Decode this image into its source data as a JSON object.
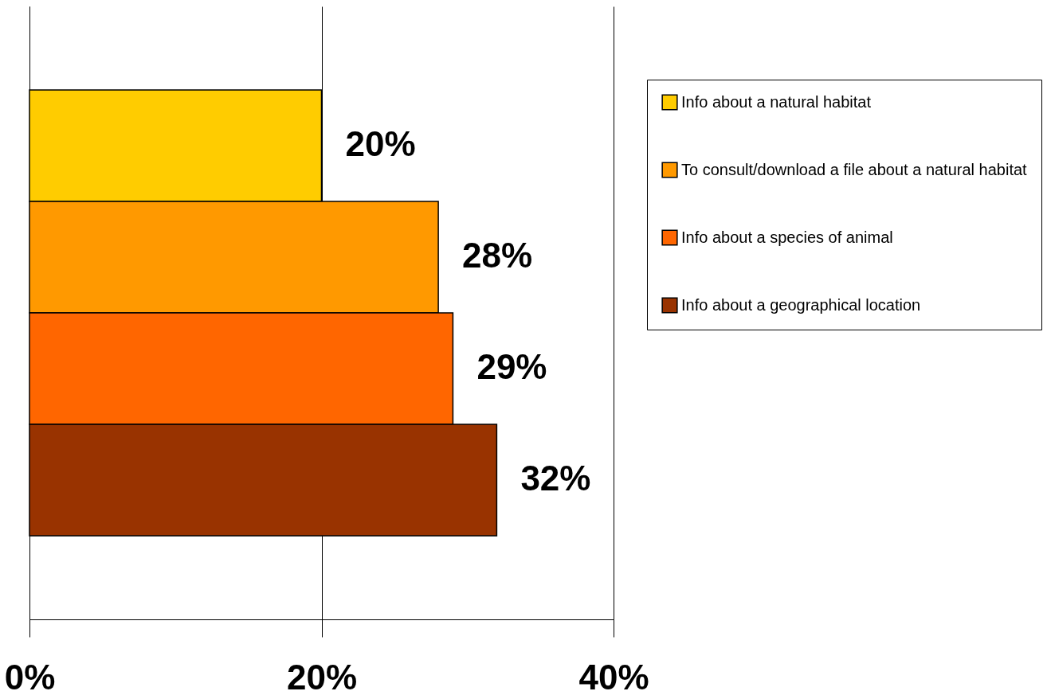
{
  "chart_data": {
    "type": "bar",
    "orientation": "horizontal",
    "categories": [
      null,
      null,
      null,
      null
    ],
    "series": [
      {
        "name": "Info about a natural habitat",
        "color": "#ffcc00",
        "values": [
          20,
          null,
          null,
          null
        ],
        "value_labels": [
          "20%",
          null,
          null,
          null
        ]
      },
      {
        "name": "To consult/download a file about a natural habitat",
        "color": "#ff9900",
        "values": [
          null,
          28,
          null,
          null
        ],
        "value_labels": [
          null,
          "28%",
          null,
          null
        ]
      },
      {
        "name": "Info about a species of animal",
        "color": "#ff6600",
        "values": [
          null,
          null,
          29,
          null
        ],
        "value_labels": [
          null,
          null,
          "29%",
          null
        ]
      },
      {
        "name": "Info about a geographical location",
        "color": "#993300",
        "values": [
          null,
          null,
          null,
          32
        ],
        "value_labels": [
          null,
          null,
          null,
          "32%"
        ]
      }
    ],
    "xlim": [
      0,
      40
    ],
    "xticks": [
      {
        "value": 0,
        "label": "0%"
      },
      {
        "value": 20,
        "label": "20%"
      },
      {
        "value": 40,
        "label": "40%"
      }
    ],
    "grid": "x",
    "legend": "right"
  }
}
